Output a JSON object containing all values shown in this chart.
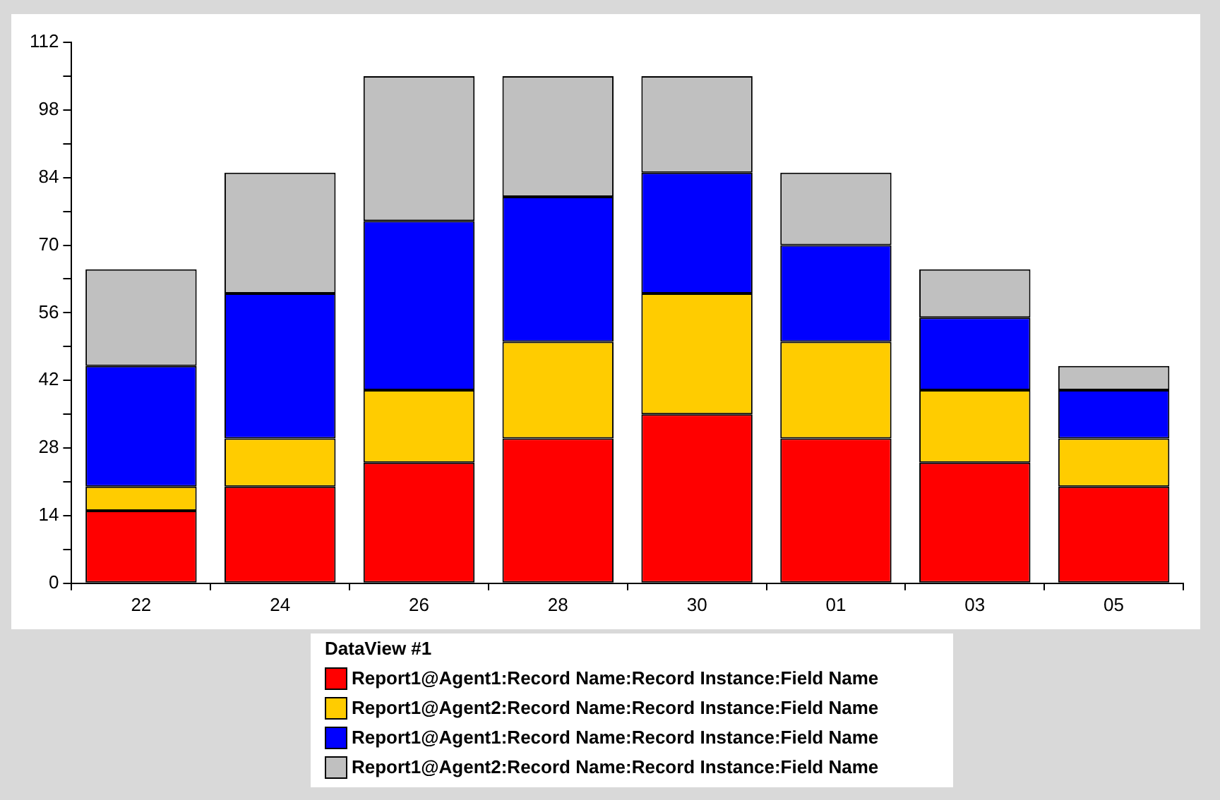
{
  "chart_data": {
    "type": "bar",
    "stacked": true,
    "categories": [
      "22",
      "24",
      "26",
      "28",
      "30",
      "01",
      "03",
      "05"
    ],
    "series": [
      {
        "name": "Report1@Agent1:Record Name:Record Instance:Field Name",
        "color": "#ff0000",
        "values": [
          15,
          20,
          25,
          30,
          35,
          30,
          25,
          20
        ]
      },
      {
        "name": "Report1@Agent2:Record Name:Record Instance:Field Name",
        "color": "#ffcc00",
        "values": [
          5,
          10,
          15,
          20,
          25,
          20,
          15,
          10
        ]
      },
      {
        "name": "Report1@Agent1:Record Name:Record Instance:Field Name",
        "color": "#0000ff",
        "values": [
          25,
          30,
          35,
          30,
          25,
          20,
          15,
          10
        ]
      },
      {
        "name": "Report1@Agent2:Record Name:Record Instance:Field Name",
        "color": "#c0c0c0",
        "values": [
          20,
          25,
          30,
          25,
          20,
          15,
          10,
          5
        ]
      }
    ],
    "ylim": [
      0,
      112
    ],
    "yticks": [
      0,
      {
        "value": 7,
        "label": null
      },
      14,
      {
        "value": 21,
        "label": null
      },
      28,
      {
        "value": 35,
        "label": null
      },
      42,
      {
        "value": 49,
        "label": null
      },
      56,
      {
        "value": 63,
        "label": null
      },
      70,
      {
        "value": 77,
        "label": null
      },
      84,
      {
        "value": 91,
        "label": null
      },
      98,
      {
        "value": 105,
        "label": null
      },
      112
    ],
    "grid": false,
    "legend": "bottom",
    "legend_title": "DataView #1"
  }
}
